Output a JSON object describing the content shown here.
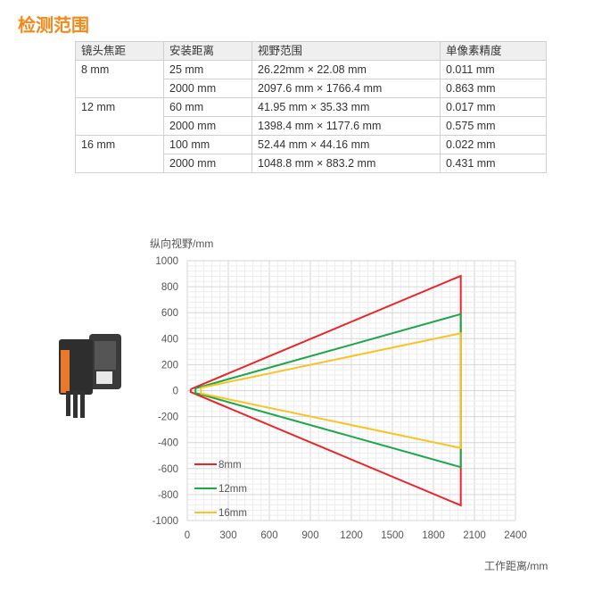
{
  "title": "检测范围",
  "table": {
    "headers": [
      "镜头焦距",
      "安装距离",
      "视野范围",
      "单像素精度"
    ],
    "groups": [
      {
        "focal": "8 mm",
        "rows": [
          [
            "25 mm",
            "26.22mm × 22.08 mm",
            "0.011 mm"
          ],
          [
            "2000 mm",
            "2097.6 mm × 1766.4 mm",
            "0.863 mm"
          ]
        ]
      },
      {
        "focal": "12 mm",
        "rows": [
          [
            "60 mm",
            "41.95 mm × 35.33 mm",
            "0.017 mm"
          ],
          [
            "2000 mm",
            "1398.4 mm × 1177.6 mm",
            "0.575 mm"
          ]
        ]
      },
      {
        "focal": "16 mm",
        "rows": [
          [
            "100 mm",
            "52.44 mm × 44.16 mm",
            "0.022 mm"
          ],
          [
            "2000 mm",
            "1048.8 mm × 883.2 mm",
            "0.431 mm"
          ]
        ]
      }
    ]
  },
  "chart_data": {
    "type": "line",
    "xlabel": "工作距离/mm",
    "ylabel": "纵向视野/mm",
    "xlim": [
      0,
      2400
    ],
    "ylim": [
      -1000,
      1000
    ],
    "xticks": [
      0,
      300,
      600,
      900,
      1200,
      1500,
      1800,
      2100,
      2400
    ],
    "yticks": [
      1000,
      800,
      600,
      400,
      200,
      0,
      -200,
      -400,
      -600,
      -800,
      -1000
    ],
    "grid": true,
    "legend": "bottom-left",
    "series": [
      {
        "name": "8mm",
        "color": "#e8262a",
        "points": [
          [
            25,
            11.04
          ],
          [
            2000,
            883.2
          ],
          [
            2000,
            -883.2
          ],
          [
            25,
            -11.04
          ],
          [
            25,
            11.04
          ]
        ]
      },
      {
        "name": "12mm",
        "color": "#1fa64a",
        "points": [
          [
            60,
            17.67
          ],
          [
            2000,
            588.8
          ],
          [
            2000,
            -588.8
          ],
          [
            60,
            -17.67
          ],
          [
            60,
            17.67
          ]
        ]
      },
      {
        "name": "16mm",
        "color": "#f7c325",
        "points": [
          [
            100,
            22.08
          ],
          [
            2000,
            441.6
          ],
          [
            2000,
            -441.6
          ],
          [
            100,
            -22.08
          ],
          [
            100,
            22.08
          ]
        ]
      }
    ]
  }
}
